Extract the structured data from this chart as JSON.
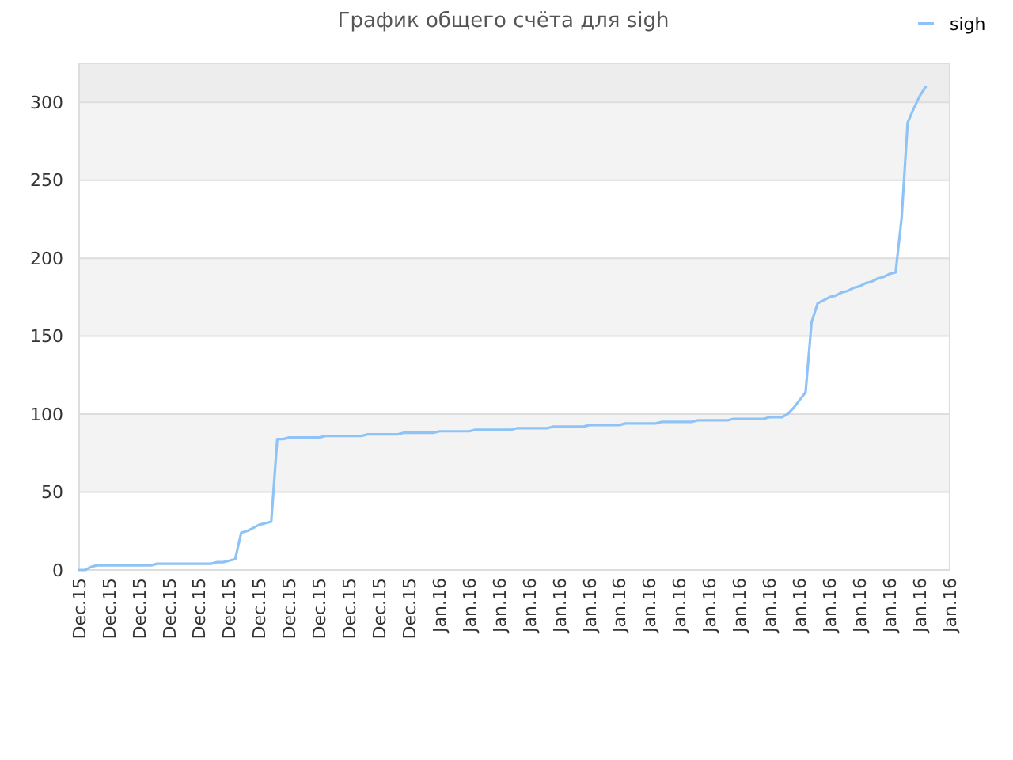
{
  "chart_data": {
    "type": "line",
    "title": "График общего счёта для sigh",
    "legend": "top right",
    "grid": "y",
    "categories": [
      "Dec.15",
      null,
      null,
      null,
      null,
      "Dec.15",
      null,
      null,
      null,
      null,
      "Dec.15",
      null,
      null,
      null,
      null,
      "Dec.15",
      null,
      null,
      null,
      null,
      "Dec.15",
      null,
      null,
      null,
      null,
      "Dec.15",
      null,
      null,
      null,
      null,
      "Dec.15",
      null,
      null,
      null,
      null,
      "Dec.15",
      null,
      null,
      null,
      null,
      "Dec.15",
      null,
      null,
      null,
      null,
      "Dec.15",
      null,
      null,
      null,
      null,
      "Dec.15",
      null,
      null,
      null,
      null,
      "Dec.15",
      null,
      null,
      null,
      null,
      "Jan.16",
      null,
      null,
      null,
      null,
      "Jan.16",
      null,
      null,
      null,
      null,
      "Jan.16",
      null,
      null,
      null,
      null,
      "Jan.16",
      null,
      null,
      null,
      null,
      "Jan.16",
      null,
      null,
      null,
      null,
      "Jan.16",
      null,
      null,
      null,
      null,
      "Jan.16",
      null,
      null,
      null,
      null,
      "Jan.16",
      null,
      null,
      null,
      null,
      "Jan.16",
      null,
      null,
      null,
      null,
      "Jan.16",
      null,
      null,
      null,
      null,
      "Jan.16",
      null,
      null,
      null,
      null,
      "Jan.16",
      null,
      null,
      null,
      null,
      "Jan.16",
      null,
      null,
      null,
      null,
      "Jan.16",
      null,
      null,
      null,
      null,
      "Jan.16",
      null,
      null,
      null,
      null,
      "Jan.16",
      null,
      null,
      null,
      null,
      "Jan.16",
      null,
      null,
      null,
      null,
      "Jan.16"
    ],
    "ylim": [
      0,
      325
    ],
    "yticks": [
      0,
      50,
      100,
      150,
      200,
      250,
      300
    ],
    "bands": [
      {
        "axis": "y",
        "from": 300,
        "to": 325,
        "color": "#ededed"
      }
    ],
    "series": [
      {
        "name": "sigh",
        "color": "#90c3f5",
        "values": [
          0,
          0,
          2,
          3,
          3,
          3,
          3,
          3,
          3,
          3,
          3,
          3,
          3,
          4,
          4,
          4,
          4,
          4,
          4,
          4,
          4,
          4,
          4,
          5,
          5,
          6,
          7,
          24,
          25,
          27,
          29,
          30,
          31,
          84,
          84,
          85,
          85,
          85,
          85,
          85,
          85,
          86,
          86,
          86,
          86,
          86,
          86,
          86,
          87,
          87,
          87,
          87,
          87,
          87,
          88,
          88,
          88,
          88,
          88,
          88,
          89,
          89,
          89,
          89,
          89,
          89,
          90,
          90,
          90,
          90,
          90,
          90,
          90,
          91,
          91,
          91,
          91,
          91,
          91,
          92,
          92,
          92,
          92,
          92,
          92,
          93,
          93,
          93,
          93,
          93,
          93,
          94,
          94,
          94,
          94,
          94,
          94,
          95,
          95,
          95,
          95,
          95,
          95,
          96,
          96,
          96,
          96,
          96,
          96,
          97,
          97,
          97,
          97,
          97,
          97,
          98,
          98,
          98,
          100,
          104,
          109,
          114,
          159,
          171,
          173,
          175,
          176,
          178,
          179,
          181,
          182,
          184,
          185,
          187,
          188,
          190,
          191,
          226,
          287,
          296,
          304,
          310,
          null,
          null,
          null,
          null
        ]
      }
    ]
  }
}
